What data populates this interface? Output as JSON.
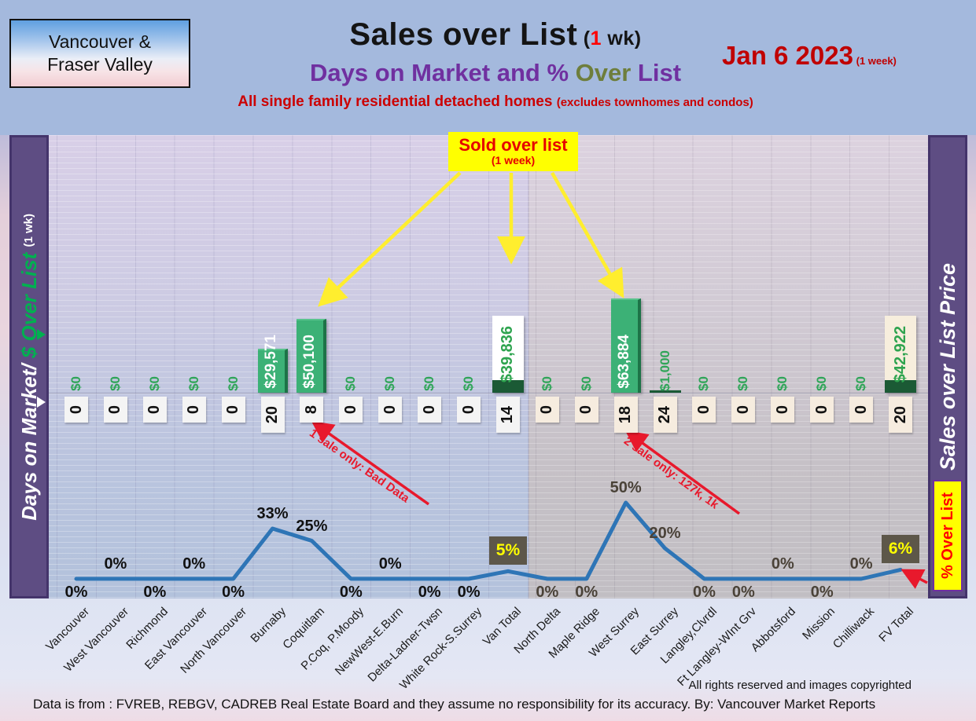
{
  "header": {
    "region_box": {
      "line1": "Vancouver &",
      "line2": "Fraser Valley"
    },
    "title": {
      "main": "Sales over List",
      "paren_pre": " (",
      "paren_red": "1",
      "paren_post": " wk)"
    },
    "subtitle": {
      "part1": "Days on Market and % ",
      "part2": "Over",
      "part3": " List"
    },
    "tagline": {
      "main": "All single family residential detached homes ",
      "paren": "(excludes townhomes and condos)"
    },
    "date": {
      "main": "Jan 6  2023",
      "suffix": " (1 week)"
    }
  },
  "left_sidebar": {
    "label_white": "Days on Market/ ",
    "label_green": "$ Over List ",
    "label_small": "(1 wk)"
  },
  "right_sidebar": {
    "label": "Sales over List Price",
    "badge": "% Over List"
  },
  "callout": {
    "line1": "Sold over list",
    "line2": "(1 week)"
  },
  "annotations": {
    "left": "1 sale only: Bad Data",
    "right": "2 sale only: 127k, 1k"
  },
  "footer": {
    "rights": "All rights reserved and  images copyrighted",
    "source": "Data is from : FVREB, REBGV, CADREB Real Estate Board and they assume no responsibility for its accuracy. By: Vancouver Market Reports"
  },
  "chart_data": {
    "type": "combo bar+line with value boxes",
    "title": "Sales over List (1 wk) — Days on Market and % Over List",
    "categories": [
      "Vancouver",
      "West Vancouver",
      "Richmond",
      "East Vancouver",
      "North Vancouver",
      "Burnaby",
      "Coquitlam",
      "P.Coq, P.Moody",
      "NewWest-E.Burn",
      "Delta-Ladner-Twsn",
      "White Rock-S.Surrey",
      "Van Total",
      "North Delta",
      "Maple Ridge",
      "West Surrey",
      "East Surrey",
      "Langley,Clvrdl",
      "Ft Langley-WInt Grv",
      "Abbotsford",
      "Mission",
      "Chilliwack",
      "FV Total"
    ],
    "series": [
      {
        "name": "$ Over List (1 wk)",
        "type": "bar",
        "values": [
          0,
          0,
          0,
          0,
          0,
          29571,
          50100,
          0,
          0,
          0,
          0,
          39836,
          0,
          0,
          63884,
          1000,
          0,
          0,
          0,
          0,
          0,
          42922
        ],
        "labels": [
          "$0",
          "$0",
          "$0",
          "$0",
          "$0",
          "$29,571",
          "$50,100",
          "$0",
          "$0",
          "$0",
          "$0",
          "$39,836",
          "$0",
          "$0",
          "$63,884",
          "$1,000",
          "$0",
          "$0",
          "$0",
          "$0",
          "$0",
          "$42,922"
        ]
      },
      {
        "name": "Days on Market",
        "type": "value_boxes",
        "values": [
          0,
          0,
          0,
          0,
          0,
          20,
          8,
          0,
          0,
          0,
          0,
          14,
          0,
          0,
          18,
          24,
          0,
          0,
          0,
          0,
          0,
          20
        ]
      },
      {
        "name": "% Over List",
        "type": "line",
        "values": [
          0,
          0,
          0,
          0,
          0,
          33,
          25,
          0,
          0,
          0,
          0,
          5,
          0,
          0,
          50,
          20,
          0,
          0,
          0,
          0,
          0,
          6
        ],
        "labels": [
          "0%",
          "0%",
          "0%",
          "0%",
          "0%",
          "33%",
          "25%",
          "0%",
          "0%",
          "0%",
          "0%",
          "5%",
          "0%",
          "0%",
          "50%",
          "20%",
          "0%",
          "0%",
          "0%",
          "0%",
          "0%",
          "6%"
        ],
        "label_positions": [
          "below",
          "above",
          "below",
          "above",
          "below",
          "above",
          "above",
          "below",
          "above",
          "below",
          "below",
          "box",
          "below",
          "below",
          "above",
          "above",
          "below",
          "below",
          "above",
          "below",
          "above",
          "box"
        ]
      }
    ],
    "highlight_columns": [
      11,
      21
    ],
    "left_half_count": 12,
    "ylim_dollar": [
      0,
      70000
    ],
    "ylim_pct": [
      0,
      55
    ],
    "grid": true,
    "legend": false,
    "colors": {
      "bar_fill": "#3cb176",
      "bar_edge": "#1d7347",
      "bar_text": "#ffffff",
      "dollar_zero_text": "#2fa558",
      "total_base": "#1b5a35",
      "total_text": "#2ea44f",
      "total_bg_left": "#ffffff",
      "total_bg_right": "#f7eedd",
      "day_bg_left": "#f4f4f4",
      "day_bg_right": "#f6ecdf",
      "day_text": "#111111",
      "line": "#2e75b6",
      "pct_text_left": "#111111",
      "pct_text_right": "#4a4238",
      "pct_box_bg": "#5d5749",
      "pct_box_text": "#ffff00",
      "annotation_red": "#e8192c",
      "callout_bg": "#ffff00",
      "callout_text": "#e60000",
      "arrow_yellow": "#ffee2e"
    }
  }
}
